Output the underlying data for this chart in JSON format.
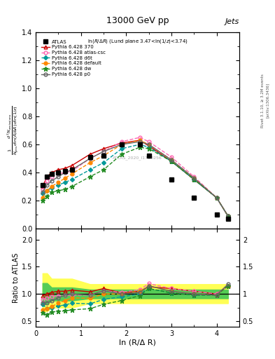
{
  "title_top": "13000 GeV pp",
  "title_right": "Jets",
  "annotation": "ln(R/Δ R) (Lund plane 3.47<ln(1/z)<3.74)",
  "watermark": "ATLAS_2020_I1790256",
  "xlabel": "ln (R/Δ R)",
  "ylabel_ratio": "Ratio to ATLAS",
  "x_data": [
    0.15,
    0.25,
    0.35,
    0.5,
    0.65,
    0.8,
    1.2,
    1.5,
    1.9,
    2.3,
    2.5,
    3.0,
    3.5,
    4.0,
    4.25
  ],
  "atlas_y": [
    0.31,
    0.37,
    0.39,
    0.4,
    0.41,
    0.42,
    0.51,
    0.52,
    0.6,
    0.6,
    0.52,
    0.35,
    0.22,
    0.1,
    0.07
  ],
  "py370_y": [
    0.3,
    0.37,
    0.4,
    0.42,
    0.43,
    0.45,
    0.53,
    0.57,
    0.61,
    0.63,
    0.59,
    0.48,
    0.35,
    0.22,
    0.09
  ],
  "py_atlascsc_y": [
    0.28,
    0.34,
    0.37,
    0.39,
    0.4,
    0.41,
    0.5,
    0.55,
    0.62,
    0.65,
    0.62,
    0.51,
    0.37,
    0.22,
    0.09
  ],
  "py_d6t_y": [
    0.25,
    0.27,
    0.29,
    0.31,
    0.33,
    0.35,
    0.42,
    0.47,
    0.57,
    0.6,
    0.58,
    0.48,
    0.35,
    0.22,
    0.09
  ],
  "py_default_y": [
    0.22,
    0.27,
    0.3,
    0.33,
    0.36,
    0.39,
    0.47,
    0.52,
    0.6,
    0.63,
    0.6,
    0.49,
    0.36,
    0.22,
    0.09
  ],
  "py_dw_y": [
    0.2,
    0.23,
    0.26,
    0.27,
    0.28,
    0.3,
    0.37,
    0.42,
    0.53,
    0.58,
    0.57,
    0.48,
    0.35,
    0.22,
    0.09
  ],
  "py_p0_y": [
    0.26,
    0.31,
    0.34,
    0.37,
    0.4,
    0.42,
    0.5,
    0.55,
    0.6,
    0.62,
    0.6,
    0.49,
    0.36,
    0.22,
    0.09
  ],
  "ratio_370": [
    0.97,
    1.0,
    1.03,
    1.05,
    1.05,
    1.07,
    1.04,
    1.1,
    1.02,
    1.05,
    1.13,
    1.1,
    1.05,
    1.0,
    1.15
  ],
  "ratio_atlascsc": [
    0.9,
    0.92,
    0.95,
    0.97,
    0.98,
    0.98,
    0.98,
    1.06,
    1.03,
    1.08,
    1.19,
    1.1,
    1.05,
    1.0,
    1.15
  ],
  "ratio_d6t": [
    0.81,
    0.73,
    0.74,
    0.78,
    0.8,
    0.83,
    0.82,
    0.9,
    0.95,
    1.0,
    1.1,
    1.02,
    0.98,
    0.98,
    1.15
  ],
  "ratio_default": [
    0.71,
    0.73,
    0.77,
    0.83,
    0.88,
    0.93,
    0.92,
    1.0,
    1.0,
    1.05,
    1.15,
    1.05,
    1.0,
    0.98,
    1.15
  ],
  "ratio_dw": [
    0.65,
    0.62,
    0.67,
    0.68,
    0.69,
    0.71,
    0.73,
    0.81,
    0.88,
    0.97,
    1.1,
    1.02,
    0.98,
    0.98,
    1.15
  ],
  "ratio_p0": [
    0.84,
    0.84,
    0.87,
    0.93,
    0.98,
    1.0,
    0.98,
    1.06,
    1.0,
    1.03,
    1.15,
    1.05,
    1.0,
    0.98,
    1.18
  ],
  "green_band_lo": [
    0.82,
    0.82,
    0.88,
    0.88,
    0.88,
    0.88,
    0.92,
    0.92,
    0.92,
    0.92,
    0.92,
    0.92,
    0.92,
    0.92,
    0.92
  ],
  "green_band_hi": [
    1.2,
    1.2,
    1.12,
    1.12,
    1.12,
    1.12,
    1.08,
    1.08,
    1.08,
    1.08,
    1.08,
    1.08,
    1.08,
    1.08,
    1.08
  ],
  "yellow_band_lo": [
    0.68,
    0.68,
    0.75,
    0.75,
    0.75,
    0.75,
    0.83,
    0.83,
    0.83,
    0.83,
    0.83,
    0.83,
    0.83,
    0.83,
    0.83
  ],
  "yellow_band_hi": [
    1.38,
    1.38,
    1.28,
    1.28,
    1.28,
    1.28,
    1.18,
    1.18,
    1.18,
    1.18,
    1.18,
    1.18,
    1.18,
    1.18,
    1.18
  ],
  "color_370": "#cc0000",
  "color_atlascsc": "#ff69b4",
  "color_d6t": "#009999",
  "color_default": "#ff8800",
  "color_dw": "#228b22",
  "color_p0": "#666666",
  "color_atlas": "#000000",
  "xlim": [
    0,
    4.5
  ],
  "ylim_main": [
    0.0,
    1.4
  ],
  "ylim_ratio": [
    0.4,
    2.2
  ]
}
